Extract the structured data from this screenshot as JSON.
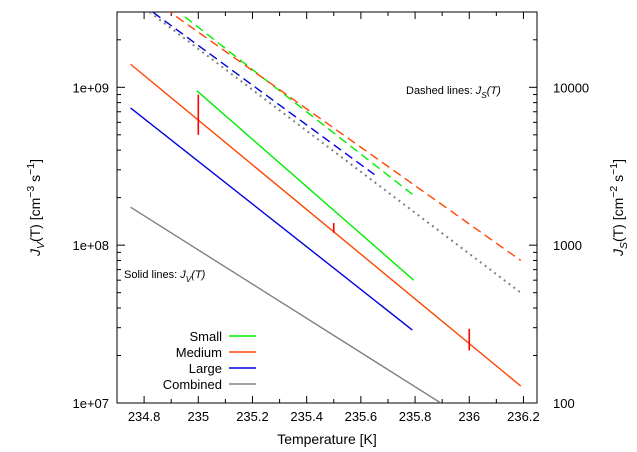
{
  "chart_data": {
    "type": "line",
    "xlabel": "Temperature [K]",
    "ylabel_left": [
      "J",
      "V",
      "(T) [cm",
      "−3",
      " s",
      "−1",
      "]"
    ],
    "ylabel_right": [
      "J",
      "S",
      "(T) [cm",
      "−2",
      " s",
      "−1",
      "]"
    ],
    "x_ticks": [
      234.8,
      235,
      235.2,
      235.4,
      235.6,
      235.8,
      236,
      236.2
    ],
    "x_tick_labels": [
      "234.8",
      "235",
      "235.2",
      "235.4",
      "235.6",
      "235.8",
      "236",
      "236.2"
    ],
    "xlim": [
      234.7,
      236.25
    ],
    "y_left": {
      "scale": "log",
      "lim": [
        10000000.0,
        3000000000.0
      ],
      "ticks": [
        10000000.0,
        100000000.0,
        1000000000.0
      ],
      "tick_labels": [
        "1e+07",
        "1e+08",
        "1e+09"
      ]
    },
    "y_right": {
      "scale": "log",
      "lim": [
        100,
        30000
      ],
      "ticks": [
        100,
        1000,
        10000
      ],
      "tick_labels": [
        "100",
        "1000",
        "10000"
      ]
    },
    "annotations": {
      "dashed": [
        "Dashed lines: ",
        "J",
        "S",
        "(T)"
      ],
      "solid": [
        "Solid lines: ",
        "J",
        "V",
        "(T)"
      ]
    },
    "legend": {
      "position": "bottom-left"
    },
    "series": [
      {
        "name": "Small",
        "color": "#00ee00",
        "style": "solid",
        "axis": "left",
        "x": [
          234.995,
          235.795
        ],
        "y": [
          950000000.0,
          60000000.0
        ]
      },
      {
        "name": "Medium",
        "color": "#ff4500",
        "style": "solid",
        "axis": "left",
        "x": [
          234.75,
          236.19
        ],
        "y": [
          1400000000.0,
          12800000.0
        ]
      },
      {
        "name": "Large",
        "color": "#0000dd",
        "style": "solid",
        "axis": "left",
        "x": [
          234.75,
          235.79
        ],
        "y": [
          740000000.0,
          29000000.0
        ]
      },
      {
        "name": "Combined",
        "color": "#808080",
        "style": "solid",
        "axis": "left",
        "x": [
          234.75,
          235.895
        ],
        "y": [
          174000000.0,
          10000000.0
        ]
      },
      {
        "name": "Small",
        "color": "#00ee00",
        "style": "dashed",
        "axis": "right",
        "x": [
          234.95,
          235.79
        ],
        "y": [
          28000,
          2100
        ]
      },
      {
        "name": "Medium",
        "color": "#ff4500",
        "style": "dashed",
        "axis": "right",
        "x": [
          234.75,
          236.19
        ],
        "y": [
          45000,
          800
        ]
      },
      {
        "name": "Large",
        "color": "#0000dd",
        "style": "dashed",
        "axis": "right",
        "x": [
          234.75,
          235.65
        ],
        "y": [
          38000,
          2800
        ]
      },
      {
        "name": "Combined",
        "color": "#808080",
        "style": "dotted",
        "axis": "right",
        "x": [
          234.75,
          236.19
        ],
        "y": [
          37000,
          500
        ]
      }
    ],
    "error_bars": [
      {
        "color": "#ff0000",
        "x": 235.0,
        "y_low": 500000000.0,
        "y_high": 900000000.0
      },
      {
        "color": "#ff0000",
        "x": 235.5,
        "y_low": 120000000.0,
        "y_high": 138000000.0
      },
      {
        "color": "#ff0000",
        "x": 236.0,
        "y_low": 21500000.0,
        "y_high": 29500000.0
      }
    ]
  }
}
